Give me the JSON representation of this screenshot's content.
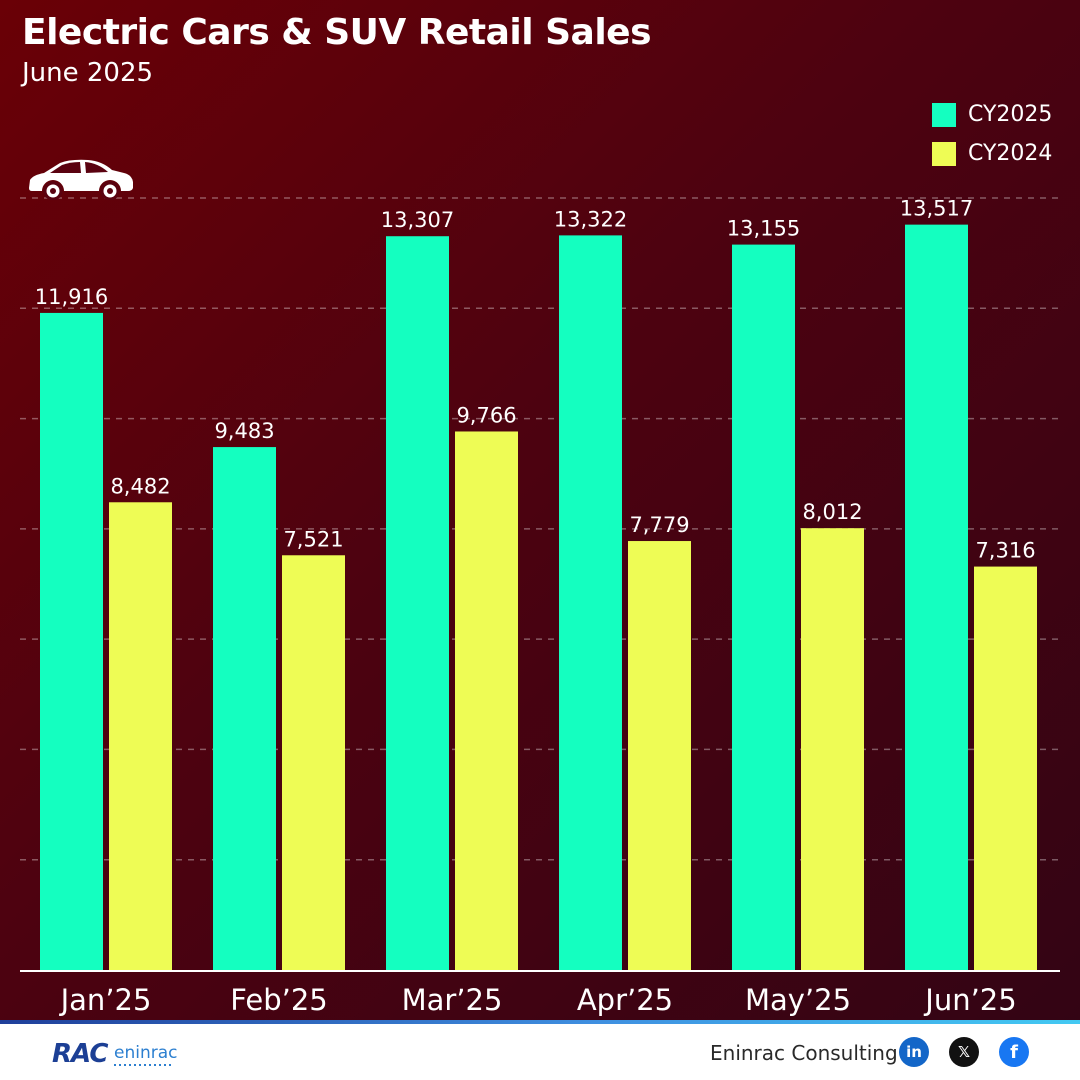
{
  "header": {
    "title": "Electric Cars & SUV Retail Sales",
    "subtitle": "June 2025"
  },
  "legend": [
    {
      "label": "CY2025",
      "color": "#14ffc0"
    },
    {
      "label": "CY2024",
      "color": "#eefc55"
    }
  ],
  "icons": {
    "car": "electric-car-icon"
  },
  "chart_data": {
    "type": "bar",
    "title": "Electric Cars & SUV Retail Sales",
    "subtitle": "June 2025",
    "categories": [
      "Jan’25",
      "Feb’25",
      "Mar’25",
      "Apr’25",
      "May’25",
      "Jun’25"
    ],
    "series": [
      {
        "name": "CY2025",
        "values": [
          11916,
          9483,
          13307,
          13322,
          13155,
          13517
        ],
        "color": "#14ffc0"
      },
      {
        "name": "CY2024",
        "values": [
          8482,
          7521,
          9766,
          7779,
          8012,
          7316
        ],
        "color": "#eefc55"
      }
    ],
    "ylim": [
      0,
      14000
    ],
    "grid": true,
    "legend_position": "top-right",
    "data_labels": true
  },
  "footer": {
    "logo_text": "RAC",
    "logo_subtext": "eninrac",
    "company": "Eninrac Consulting",
    "social": [
      {
        "name": "linkedin-icon",
        "glyph": "in",
        "color": "#1366c8"
      },
      {
        "name": "x-twitter-icon",
        "glyph": "𝕏",
        "color": "#111111"
      },
      {
        "name": "facebook-icon",
        "glyph": "f",
        "color": "#1877f2"
      }
    ]
  }
}
